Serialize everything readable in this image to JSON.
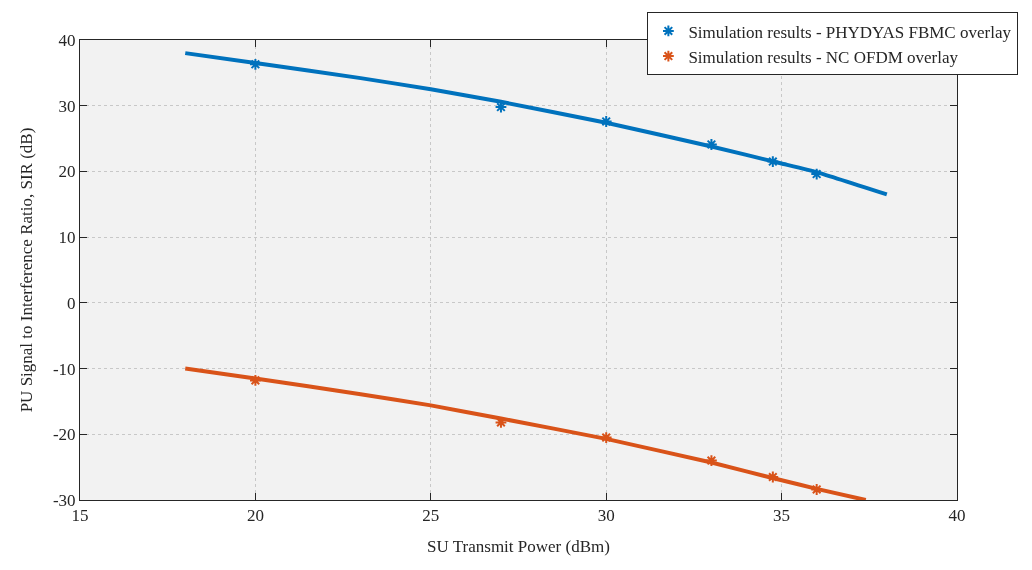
{
  "chart_data": {
    "type": "line",
    "xlabel": "SU Transmit Power (dBm)",
    "ylabel": "PU Signal to Interference Ratio, SIR (dB)",
    "xlim": [
      15,
      40
    ],
    "xticks": [
      15,
      20,
      25,
      30,
      35,
      40
    ],
    "ylim": [
      -30,
      40
    ],
    "yticks": [
      -30,
      -20,
      -10,
      0,
      10,
      20,
      30,
      40
    ],
    "grid": true,
    "legend": "top right",
    "series": [
      {
        "name": "Simulation results - PHYDYAS FBMC overlay",
        "type": "scatter",
        "marker": "cross",
        "color": "#0072bd",
        "x": [
          20,
          27,
          30,
          33,
          34.75,
          36
        ],
        "values": [
          36.3,
          29.8,
          27.6,
          24.1,
          21.5,
          19.6
        ]
      },
      {
        "name": "Simulation results - NC OFDM overlay",
        "type": "scatter",
        "marker": "cross",
        "color": "#d95319",
        "x": [
          20,
          27,
          30,
          33,
          34.75,
          36
        ],
        "values": [
          -11.8,
          -18.2,
          -20.5,
          -24.0,
          -26.5,
          -28.4
        ]
      },
      {
        "marker": "none",
        "color": "#0072bd",
        "x": [
          18,
          20,
          23,
          25,
          27,
          30,
          33,
          35,
          36,
          38
        ],
        "values": [
          38.0,
          36.5,
          34.2,
          32.5,
          30.6,
          27.4,
          23.8,
          21.2,
          19.9,
          16.5
        ]
      },
      {
        "marker": "none",
        "color": "#d95319",
        "x": [
          18,
          20,
          23,
          25,
          27,
          30,
          33,
          35,
          36,
          37.4
        ],
        "values": [
          -10.0,
          -11.5,
          -13.9,
          -15.6,
          -17.6,
          -20.7,
          -24.3,
          -27.0,
          -28.3,
          -30.0
        ]
      }
    ]
  }
}
